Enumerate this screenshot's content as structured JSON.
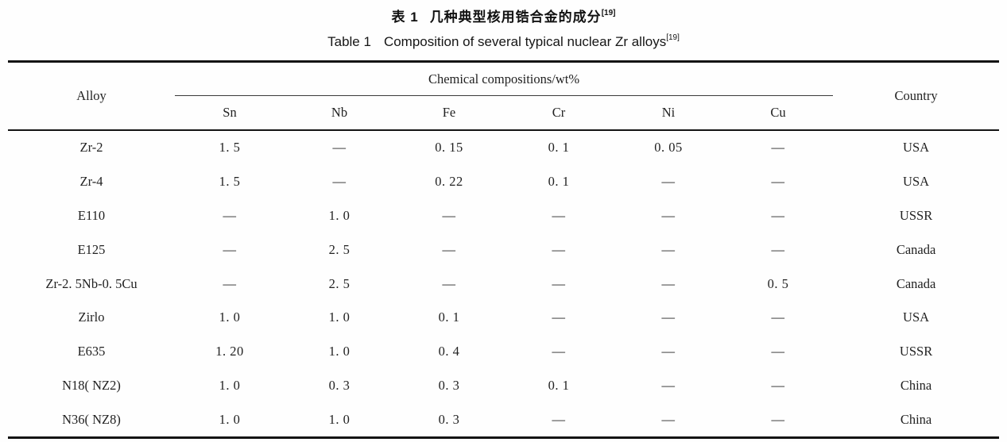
{
  "titles": {
    "zh_label": "表 1",
    "zh_text": "几种典型核用锆合金的成分",
    "zh_sup": "[19]",
    "en_label": "Table 1",
    "en_text": "Composition of several typical nuclear Zr alloys",
    "en_sup": "[19]"
  },
  "table": {
    "header": {
      "alloy": "Alloy",
      "group": "Chemical compositions/wt%",
      "elements": [
        "Sn",
        "Nb",
        "Fe",
        "Cr",
        "Ni",
        "Cu"
      ],
      "country": "Country"
    },
    "rows": [
      {
        "alloy": "Zr-2",
        "values": [
          "1. 5",
          "—",
          "0. 15",
          "0. 1",
          "0. 05",
          "—"
        ],
        "country": "USA"
      },
      {
        "alloy": "Zr-4",
        "values": [
          "1. 5",
          "—",
          "0. 22",
          "0. 1",
          "—",
          "—"
        ],
        "country": "USA"
      },
      {
        "alloy": "E110",
        "values": [
          "—",
          "1. 0",
          "—",
          "—",
          "—",
          "—"
        ],
        "country": "USSR"
      },
      {
        "alloy": "E125",
        "values": [
          "—",
          "2. 5",
          "—",
          "—",
          "—",
          "—"
        ],
        "country": "Canada"
      },
      {
        "alloy": "Zr-2. 5Nb-0. 5Cu",
        "values": [
          "—",
          "2. 5",
          "—",
          "—",
          "—",
          "0. 5"
        ],
        "country": "Canada"
      },
      {
        "alloy": "Zirlo",
        "values": [
          "1. 0",
          "1. 0",
          "0. 1",
          "—",
          "—",
          "—"
        ],
        "country": "USA"
      },
      {
        "alloy": "E635",
        "values": [
          "1. 20",
          "1. 0",
          "0. 4",
          "—",
          "—",
          "—"
        ],
        "country": "USSR"
      },
      {
        "alloy": "N18( NZ2)",
        "values": [
          "1. 0",
          "0. 3",
          "0. 3",
          "0. 1",
          "—",
          "—"
        ],
        "country": "China"
      },
      {
        "alloy": "N36( NZ8)",
        "values": [
          "1. 0",
          "1. 0",
          "0. 3",
          "—",
          "—",
          "—"
        ],
        "country": "China"
      }
    ]
  }
}
